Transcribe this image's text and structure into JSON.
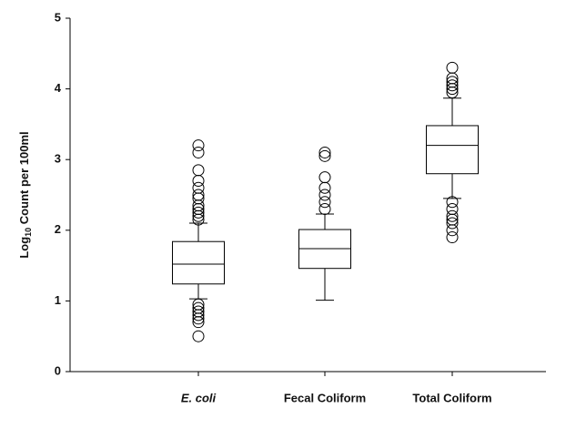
{
  "chart_data": {
    "type": "box",
    "ylabel": {
      "base": "Log",
      "sub": "10",
      "rest": " Count per 100ml"
    },
    "categories": [
      "E. coli",
      "Fecal Coliform",
      "Total Coliform"
    ],
    "category_styles": [
      "italic",
      "normal",
      "normal"
    ],
    "boxes": [
      {
        "whisker_low": 1.03,
        "q1": 1.24,
        "median": 1.52,
        "q3": 1.84,
        "whisker_high": 2.1,
        "outliers": [
          2.15,
          2.2,
          2.25,
          2.3,
          2.35,
          2.45,
          2.5,
          2.6,
          2.7,
          2.85,
          3.1,
          3.2,
          0.95,
          0.9,
          0.85,
          0.8,
          0.75,
          0.7,
          0.5
        ]
      },
      {
        "whisker_low": 1.01,
        "q1": 1.46,
        "median": 1.74,
        "q3": 2.01,
        "whisker_high": 2.23,
        "outliers": [
          2.3,
          2.4,
          2.5,
          2.6,
          2.75,
          3.05,
          3.1
        ]
      },
      {
        "whisker_low": 2.45,
        "q1": 2.8,
        "median": 3.2,
        "q3": 3.48,
        "whisker_high": 3.87,
        "outliers": [
          3.95,
          4.0,
          4.05,
          4.1,
          4.15,
          4.3,
          2.4,
          2.3,
          2.2,
          2.15,
          2.1,
          2.0,
          1.9
        ]
      }
    ],
    "ylim": [
      0,
      5
    ],
    "yticks": [
      0,
      1,
      2,
      3,
      4,
      5
    ],
    "grid": false,
    "color": "#000000"
  }
}
